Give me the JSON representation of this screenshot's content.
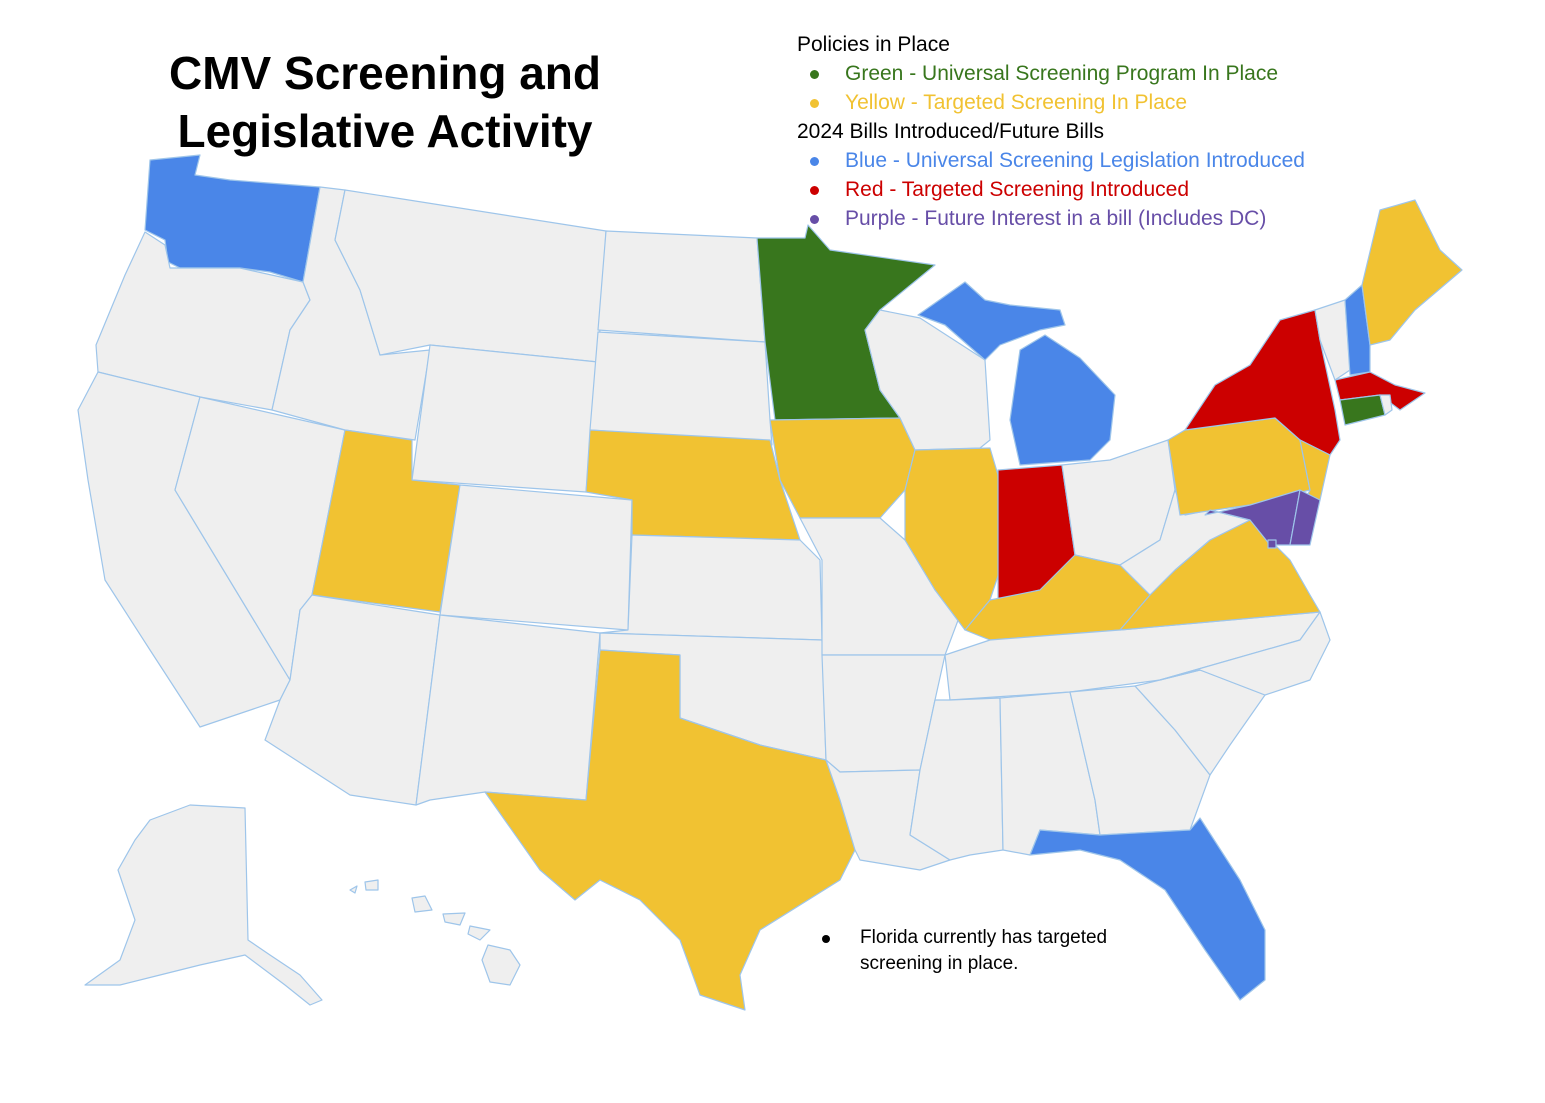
{
  "title": {
    "line1": "CMV Screening and",
    "line2": "Legislative Activity"
  },
  "legend": {
    "policies_heading": "Policies in Place",
    "green_label": "Green - Universal Screening Program In Place",
    "yellow_label": "Yellow - Targeted Screening  In Place",
    "bills_heading": "2024 Bills Introduced/Future Bills",
    "blue_label": "Blue - Universal Screening Legislation Introduced",
    "red_label": "Red - Targeted Screening Introduced",
    "purple_label": "Purple - Future Interest in a bill (Includes DC)"
  },
  "note": {
    "florida": "Florida currently has targeted screening in place."
  },
  "colors": {
    "green": "#38761d",
    "yellow": "#f1c232",
    "blue": "#4a86e8",
    "red": "#cc0000",
    "purple": "#674ea7",
    "none": "#efefef",
    "border": "#9ec5ea"
  },
  "states": {
    "green": [
      "MN",
      "CT"
    ],
    "yellow": [
      "UT",
      "NE",
      "IA",
      "IL",
      "KY",
      "VA",
      "PA",
      "ME",
      "TX",
      "NJ"
    ],
    "blue": [
      "WA",
      "MI",
      "NH",
      "FL"
    ],
    "red": [
      "IN",
      "NY",
      "MA"
    ],
    "purple": [
      "MD",
      "DE",
      "DC"
    ],
    "none": [
      "OR",
      "CA",
      "NV",
      "ID",
      "MT",
      "WY",
      "CO",
      "AZ",
      "NM",
      "ND",
      "SD",
      "KS",
      "OK",
      "MO",
      "AR",
      "LA",
      "MS",
      "AL",
      "GA",
      "SC",
      "NC",
      "TN",
      "WV",
      "OH",
      "WI",
      "VT",
      "RI",
      "AK",
      "HI"
    ]
  }
}
